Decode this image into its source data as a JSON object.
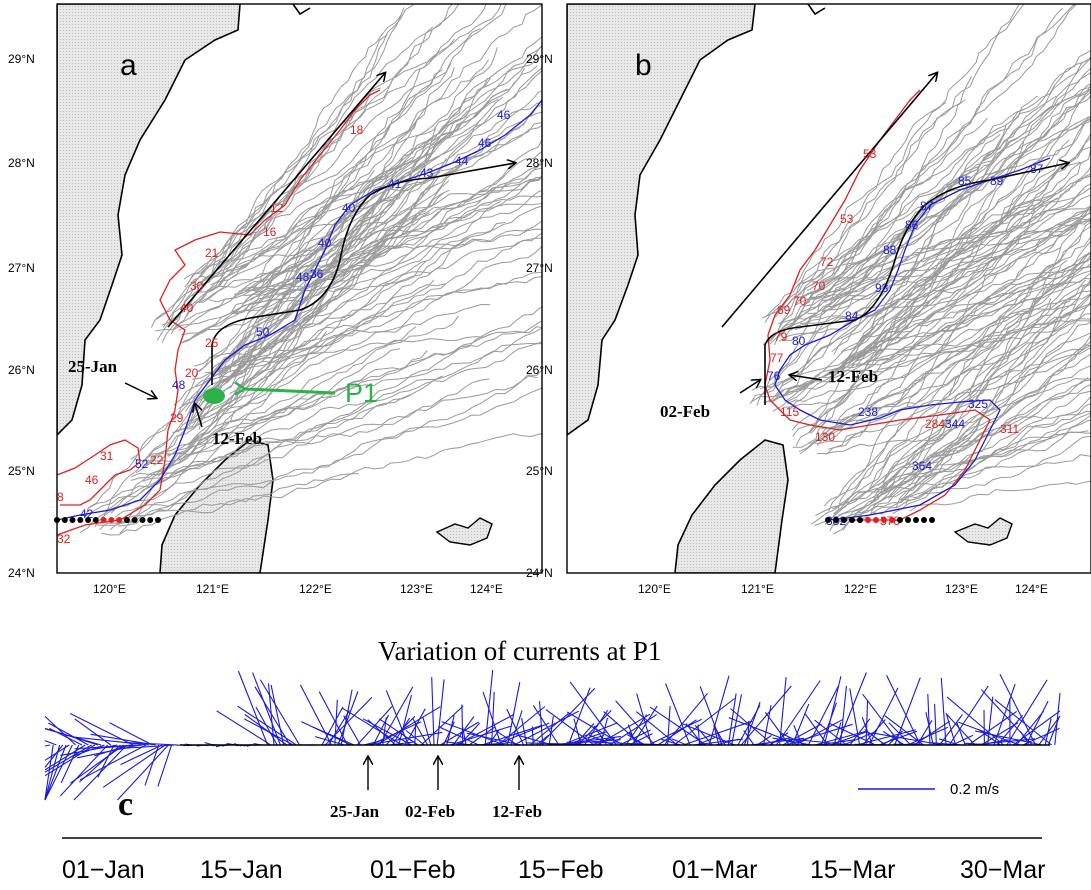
{
  "panel_a": {
    "letter": "a",
    "lat_labels": [
      "29°N",
      "28°N",
      "27°N",
      "26°N",
      "25°N",
      "24°N"
    ],
    "lon_labels": [
      "120°E",
      "121°E",
      "122°E",
      "123°E",
      "124°E"
    ],
    "date_labels": [
      "25-Jan",
      "12-Feb"
    ],
    "point_label": "P1",
    "red_day_labels": [
      "18",
      "12",
      "16",
      "21",
      "30",
      "40",
      "25",
      "20",
      "29",
      "22",
      "31",
      "46",
      "8",
      "32"
    ],
    "blue_day_labels": [
      "46",
      "46",
      "44",
      "43",
      "41",
      "40",
      "40",
      "48",
      "36",
      "50",
      "48",
      "52",
      "42"
    ]
  },
  "panel_b": {
    "letter": "b",
    "lat_labels": [
      "29°N",
      "28°N",
      "27°N",
      "26°N",
      "25°N",
      "24°N"
    ],
    "lon_labels": [
      "120°E",
      "121°E",
      "122°E",
      "123°E",
      "124°E"
    ],
    "date_labels": [
      "12-Feb",
      "02-Feb"
    ],
    "red_day_labels": [
      "53",
      "53",
      "72",
      "70",
      "69",
      "70",
      "79",
      "77",
      "115",
      "130",
      "284",
      "311",
      "378"
    ],
    "blue_day_labels": [
      "87",
      "85",
      "89",
      "87",
      "86",
      "88",
      "93",
      "84",
      "80",
      "76",
      "238",
      "325",
      "344",
      "364",
      "382"
    ]
  },
  "panel_c": {
    "letter": "c",
    "title": "Variation of currents at P1",
    "scale_label": "0.2 m/s",
    "arrow_labels": [
      "25-Jan",
      "02-Feb",
      "12-Feb"
    ],
    "time_labels": [
      "01−Jan",
      "15−Jan",
      "01−Feb",
      "15−Feb",
      "01−Mar",
      "15−Mar",
      "30−Mar"
    ]
  },
  "colors": {
    "land": "#e6e6e6",
    "drifter_gray": "#9a9a9a",
    "red_track": "#e02020",
    "blue_track": "#1a1ad8",
    "p1_green": "#2bb34a",
    "stick_blue": "#1a1ad8"
  }
}
